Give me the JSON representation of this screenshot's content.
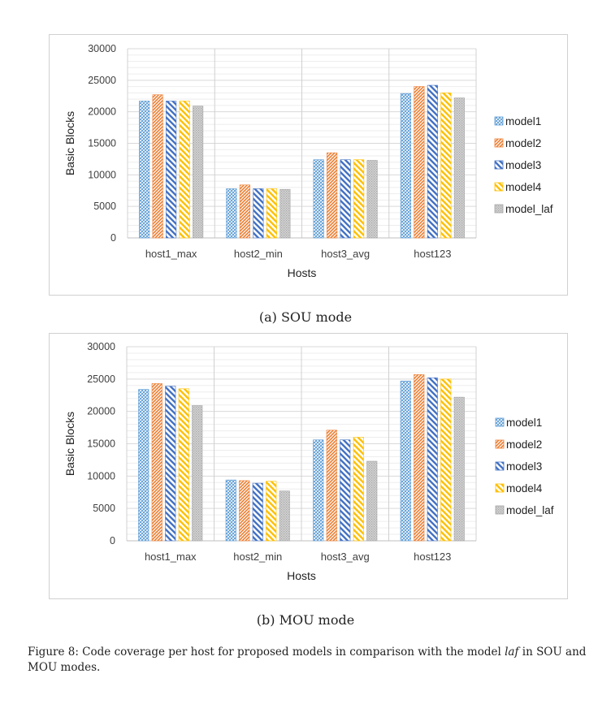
{
  "chart_data": [
    {
      "type": "bar",
      "caption": "(a) SOU mode",
      "xlabel": "Hosts",
      "ylabel": "Basic Blocks",
      "categories": [
        "host1_max",
        "host2_min",
        "host3_avg",
        "host123"
      ],
      "ylim": [
        0,
        30000
      ],
      "yticks": [
        0,
        5000,
        10000,
        15000,
        20000,
        25000,
        30000
      ],
      "grid": true,
      "legend_position": "right",
      "series": [
        {
          "name": "model1",
          "values": [
            21700,
            7800,
            12400,
            22900
          ]
        },
        {
          "name": "model2",
          "values": [
            22700,
            8400,
            13500,
            24000
          ]
        },
        {
          "name": "model3",
          "values": [
            21700,
            7800,
            12400,
            24200
          ]
        },
        {
          "name": "model4",
          "values": [
            21700,
            7800,
            12400,
            23000
          ]
        },
        {
          "name": "model_laf",
          "values": [
            20900,
            7700,
            12300,
            22200
          ]
        }
      ]
    },
    {
      "type": "bar",
      "caption": "(b) MOU mode",
      "xlabel": "Hosts",
      "ylabel": "Basic Blocks",
      "categories": [
        "host1_max",
        "host2_min",
        "host3_avg",
        "host123"
      ],
      "ylim": [
        0,
        30000
      ],
      "yticks": [
        0,
        5000,
        10000,
        15000,
        20000,
        25000,
        30000
      ],
      "grid": true,
      "legend_position": "right",
      "series": [
        {
          "name": "model1",
          "values": [
            23400,
            9400,
            15600,
            24700
          ]
        },
        {
          "name": "model2",
          "values": [
            24300,
            9300,
            17100,
            25700
          ]
        },
        {
          "name": "model3",
          "values": [
            23900,
            8900,
            15600,
            25200
          ]
        },
        {
          "name": "model4",
          "values": [
            23500,
            9200,
            16000,
            25000
          ]
        },
        {
          "name": "model_laf",
          "values": [
            20900,
            7700,
            12300,
            22200
          ]
        }
      ]
    }
  ],
  "series_style": [
    {
      "color": "#5b9bd5",
      "pattern": "cross-hatch"
    },
    {
      "color": "#ed7d31",
      "pattern": "diagonal-dense"
    },
    {
      "color": "#4472c4",
      "pattern": "diagonal-wide"
    },
    {
      "color": "#ffc000",
      "pattern": "diagonal-wide"
    },
    {
      "color": "#a5a5a5",
      "pattern": "dotted"
    }
  ],
  "figure_caption": {
    "prefix": "Figure 8: Code coverage per host for proposed models in comparison with the model ",
    "emphasis": "laf",
    "suffix": " in SOU and MOU modes."
  }
}
